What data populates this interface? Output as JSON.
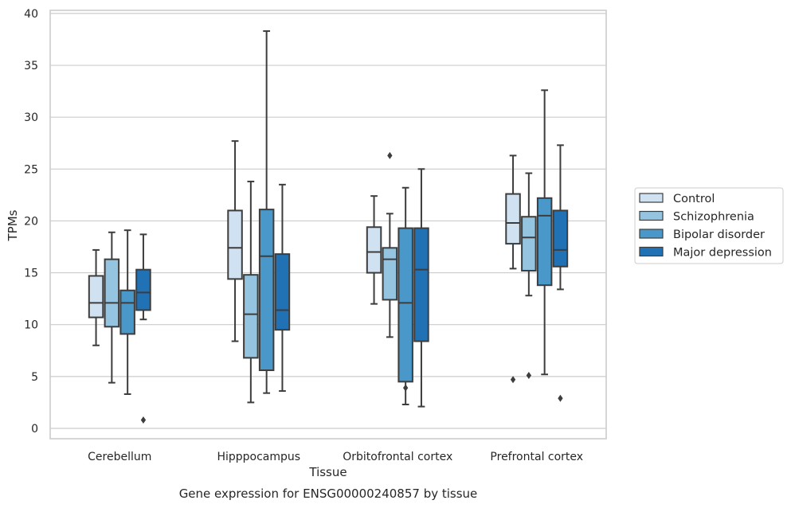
{
  "chart_data": {
    "type": "box",
    "xlabel": "Tissue",
    "ylabel": "TPMs",
    "caption": "Gene expression for ENSG00000240857 by tissue",
    "ylim": [
      -1,
      40.3
    ],
    "yticks": [
      0,
      5,
      10,
      15,
      20,
      25,
      30,
      35,
      40
    ],
    "grid": "horizontal",
    "legend_position": "right-outside",
    "categories": [
      "Cerebellum",
      "Hipppocampus",
      "Orbitofrontal cortex",
      "Prefrontal cortex"
    ],
    "series": [
      {
        "name": "Control",
        "color": "#d0e1f2",
        "boxes": [
          {
            "whisker_low": 8.0,
            "q1": 10.7,
            "median": 12.1,
            "q3": 14.7,
            "whisker_high": 17.2,
            "outliers": []
          },
          {
            "whisker_low": 8.4,
            "q1": 14.4,
            "median": 17.4,
            "q3": 21.0,
            "whisker_high": 27.7,
            "outliers": []
          },
          {
            "whisker_low": 12.0,
            "q1": 15.0,
            "median": 17.0,
            "q3": 19.4,
            "whisker_high": 22.4,
            "outliers": []
          },
          {
            "whisker_low": 15.4,
            "q1": 17.8,
            "median": 19.8,
            "q3": 22.6,
            "whisker_high": 26.3,
            "outliers": [
              4.7
            ]
          }
        ]
      },
      {
        "name": "Schizophrenia",
        "color": "#94c4df",
        "boxes": [
          {
            "whisker_low": 4.4,
            "q1": 9.8,
            "median": 12.1,
            "q3": 16.3,
            "whisker_high": 18.9,
            "outliers": []
          },
          {
            "whisker_low": 2.5,
            "q1": 6.8,
            "median": 11.0,
            "q3": 14.8,
            "whisker_high": 23.8,
            "outliers": []
          },
          {
            "whisker_low": 8.8,
            "q1": 12.4,
            "median": 16.3,
            "q3": 17.4,
            "whisker_high": 20.7,
            "outliers": [
              26.3
            ]
          },
          {
            "whisker_low": 12.8,
            "q1": 15.2,
            "median": 18.4,
            "q3": 20.4,
            "whisker_high": 24.6,
            "outliers": [
              5.1
            ]
          }
        ]
      },
      {
        "name": "Bipolar disorder",
        "color": "#4a98c9",
        "boxes": [
          {
            "whisker_low": 3.3,
            "q1": 9.1,
            "median": 12.1,
            "q3": 13.3,
            "whisker_high": 19.1,
            "outliers": []
          },
          {
            "whisker_low": 3.4,
            "q1": 5.6,
            "median": 16.6,
            "q3": 21.1,
            "whisker_high": 38.3,
            "outliers": []
          },
          {
            "whisker_low": 2.3,
            "q1": 4.5,
            "median": 12.1,
            "q3": 19.3,
            "whisker_high": 23.2,
            "outliers": [
              3.9
            ]
          },
          {
            "whisker_low": 5.2,
            "q1": 13.8,
            "median": 20.5,
            "q3": 22.2,
            "whisker_high": 32.6,
            "outliers": []
          }
        ]
      },
      {
        "name": "Major depression",
        "color": "#2171b5",
        "boxes": [
          {
            "whisker_low": 10.5,
            "q1": 11.4,
            "median": 13.1,
            "q3": 15.3,
            "whisker_high": 18.7,
            "outliers": [
              0.8
            ]
          },
          {
            "whisker_low": 3.6,
            "q1": 9.5,
            "median": 11.4,
            "q3": 16.8,
            "whisker_high": 23.5,
            "outliers": []
          },
          {
            "whisker_low": 2.1,
            "q1": 8.4,
            "median": 15.3,
            "q3": 19.3,
            "whisker_high": 25.0,
            "outliers": []
          },
          {
            "whisker_low": 13.4,
            "q1": 15.6,
            "median": 17.2,
            "q3": 21.0,
            "whisker_high": 27.3,
            "outliers": [
              2.9
            ]
          }
        ]
      }
    ]
  }
}
